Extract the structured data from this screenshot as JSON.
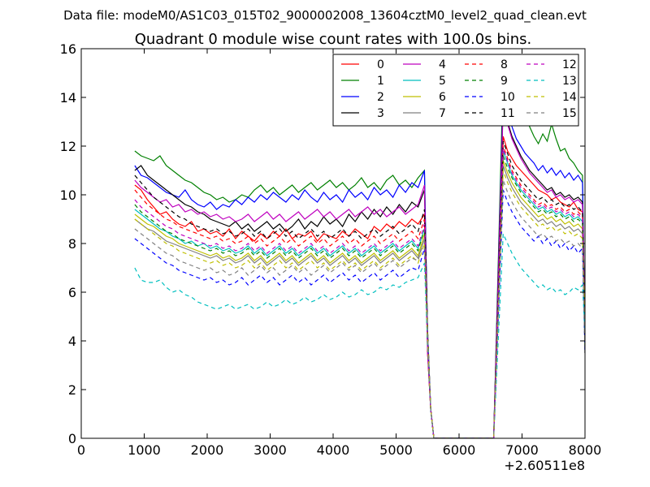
{
  "header": {
    "suptitle": "Data file: modeM0/AS1C03_015T02_9000002008_13604cztM0_level2_quad_clean.evt",
    "title": "Quadrant 0 module wise count rates with 100.0s bins."
  },
  "chart_data": {
    "type": "line",
    "xlim": [
      0,
      8000
    ],
    "ylim": [
      0,
      16
    ],
    "x_offset_label": "+2.60511e8",
    "xticks": [
      0,
      1000,
      2000,
      3000,
      4000,
      5000,
      6000,
      7000,
      8000
    ],
    "yticks": [
      0,
      2,
      4,
      6,
      8,
      10,
      12,
      14,
      16
    ],
    "grid": false,
    "legend": {
      "position": "upper-right",
      "columns": 4
    },
    "x_start": 850,
    "x_step": 100,
    "gap_range": [
      5600,
      6500
    ],
    "series": [
      {
        "name": "0",
        "color": "#ff0000",
        "style": "solid",
        "before": [
          10.4,
          10.2,
          9.8,
          9.5,
          9.2,
          9.3,
          9.0,
          8.8,
          8.7,
          8.9,
          8.5,
          8.6,
          8.4,
          8.5,
          8.3,
          8.6,
          8.2,
          8.5,
          8.3,
          8.1,
          8.4,
          8.2,
          8.5,
          8.3,
          8.6,
          8.2,
          8.4,
          8.3,
          8.5,
          8.1,
          8.4,
          8.3,
          8.2,
          8.5,
          8.3,
          8.6,
          8.4,
          8.2,
          8.7,
          8.5,
          8.8,
          8.6,
          8.9,
          8.7,
          9.0,
          8.8,
          9.2
        ],
        "after": [
          12.4,
          11.8,
          11.5,
          11.2,
          11.0,
          10.8,
          10.6,
          10.4,
          10.2,
          10.1,
          10.0,
          9.8,
          9.9,
          9.7,
          9.6,
          9.5,
          9.7,
          9.4,
          9.3
        ]
      },
      {
        "name": "1",
        "color": "#008000",
        "style": "solid",
        "before": [
          11.8,
          11.6,
          11.5,
          11.4,
          11.6,
          11.2,
          11.0,
          10.8,
          10.6,
          10.5,
          10.3,
          10.1,
          10.0,
          9.8,
          9.9,
          9.7,
          9.8,
          10.0,
          9.9,
          10.2,
          10.4,
          10.1,
          10.3,
          10.0,
          10.2,
          10.4,
          10.1,
          10.3,
          10.5,
          10.2,
          10.4,
          10.6,
          10.3,
          10.5,
          10.2,
          10.4,
          10.7,
          10.3,
          10.5,
          10.2,
          10.6,
          10.8,
          10.4,
          10.6,
          10.3,
          10.7,
          11.0
        ],
        "after": [
          15.0,
          14.5,
          13.5,
          13.0,
          13.8,
          13.2,
          12.8,
          12.4,
          12.1,
          12.5,
          12.2,
          12.9,
          12.3,
          11.8,
          11.9,
          11.5,
          11.3,
          11.0,
          10.8
        ]
      },
      {
        "name": "2",
        "color": "#0000ff",
        "style": "solid",
        "before": [
          11.2,
          10.8,
          10.7,
          10.5,
          10.3,
          10.1,
          10.0,
          9.9,
          10.2,
          9.8,
          9.6,
          9.5,
          9.7,
          9.4,
          9.6,
          9.5,
          9.8,
          9.6,
          9.9,
          9.7,
          10.0,
          9.8,
          10.1,
          9.9,
          9.7,
          10.0,
          9.8,
          10.2,
          9.9,
          9.7,
          10.1,
          9.8,
          10.0,
          9.7,
          10.2,
          9.9,
          10.1,
          9.8,
          10.3,
          10.0,
          10.2,
          9.9,
          10.4,
          10.1,
          10.5,
          10.3,
          11.0
        ],
        "after": [
          14.2,
          13.5,
          12.8,
          12.3,
          12.0,
          11.7,
          11.5,
          11.3,
          11.0,
          11.2,
          10.9,
          11.1,
          10.8,
          11.0,
          10.7,
          10.9,
          10.6,
          10.8,
          10.5
        ]
      },
      {
        "name": "3",
        "color": "#000000",
        "style": "solid",
        "before": [
          11.0,
          11.2,
          10.8,
          10.6,
          10.4,
          10.2,
          10.0,
          9.8,
          9.6,
          9.5,
          9.3,
          9.2,
          9.0,
          8.9,
          8.8,
          8.7,
          8.9,
          8.6,
          8.8,
          8.5,
          8.7,
          8.9,
          8.6,
          8.8,
          8.5,
          8.7,
          9.0,
          8.6,
          8.9,
          8.7,
          9.1,
          8.8,
          9.0,
          8.7,
          9.2,
          8.9,
          9.3,
          9.0,
          9.4,
          9.1,
          9.5,
          9.2,
          9.6,
          9.3,
          9.7,
          9.5,
          10.2
        ],
        "after": [
          13.8,
          13.0,
          12.4,
          12.0,
          11.6,
          11.3,
          11.0,
          10.8,
          10.6,
          10.4,
          10.2,
          10.3,
          10.0,
          10.1,
          9.9,
          10.0,
          9.8,
          9.9,
          9.7
        ]
      },
      {
        "name": "4",
        "color": "#bf00bf",
        "style": "solid",
        "before": [
          10.6,
          10.3,
          10.1,
          9.9,
          9.7,
          9.8,
          9.5,
          9.6,
          9.3,
          9.4,
          9.2,
          9.3,
          9.1,
          9.2,
          9.0,
          9.1,
          8.9,
          9.0,
          9.2,
          8.9,
          9.1,
          9.3,
          9.0,
          9.2,
          8.9,
          9.1,
          9.3,
          9.0,
          9.2,
          9.4,
          9.1,
          9.3,
          9.0,
          9.2,
          9.4,
          9.1,
          9.3,
          9.5,
          9.2,
          9.4,
          9.1,
          9.3,
          9.5,
          9.2,
          9.4,
          9.6,
          10.4
        ],
        "after": [
          13.6,
          12.9,
          12.3,
          11.9,
          11.5,
          11.2,
          10.9,
          10.7,
          10.5,
          10.3,
          10.1,
          10.2,
          9.9,
          10.0,
          9.8,
          9.9,
          9.7,
          9.8,
          9.6
        ]
      },
      {
        "name": "5",
        "color": "#00bfbf",
        "style": "solid",
        "before": [
          9.4,
          9.2,
          9.0,
          8.8,
          8.6,
          8.5,
          8.3,
          8.2,
          8.0,
          8.1,
          7.9,
          8.0,
          7.8,
          7.9,
          7.7,
          7.8,
          7.6,
          7.7,
          7.9,
          7.6,
          7.8,
          7.5,
          7.7,
          7.9,
          7.6,
          7.8,
          7.5,
          7.7,
          7.9,
          7.6,
          7.8,
          7.5,
          7.7,
          7.9,
          7.6,
          7.8,
          7.5,
          7.7,
          7.9,
          7.6,
          7.8,
          8.0,
          7.7,
          7.9,
          8.1,
          7.8,
          8.6
        ],
        "after": [
          11.8,
          11.3,
          10.8,
          10.5,
          10.2,
          10.0,
          9.8,
          9.6,
          9.4,
          9.5,
          9.3,
          9.4,
          9.2,
          9.3,
          9.1,
          9.2,
          9.0,
          9.1,
          8.9
        ]
      },
      {
        "name": "6",
        "color": "#bfbf00",
        "style": "solid",
        "before": [
          9.2,
          9.0,
          8.8,
          8.7,
          8.5,
          8.3,
          8.2,
          8.0,
          7.9,
          7.8,
          7.7,
          7.6,
          7.5,
          7.6,
          7.4,
          7.5,
          7.3,
          7.4,
          7.6,
          7.3,
          7.5,
          7.2,
          7.4,
          7.6,
          7.3,
          7.5,
          7.2,
          7.4,
          7.6,
          7.3,
          7.5,
          7.2,
          7.4,
          7.6,
          7.3,
          7.5,
          7.2,
          7.4,
          7.6,
          7.3,
          7.5,
          7.7,
          7.4,
          7.6,
          7.8,
          7.5,
          8.4
        ],
        "after": [
          11.4,
          10.9,
          10.5,
          10.2,
          9.9,
          9.7,
          9.5,
          9.3,
          9.1,
          9.2,
          9.0,
          9.1,
          8.9,
          9.0,
          8.8,
          8.9,
          8.7,
          8.8,
          8.6
        ]
      },
      {
        "name": "7",
        "color": "#808080",
        "style": "solid",
        "before": [
          9.0,
          8.8,
          8.6,
          8.5,
          8.3,
          8.1,
          8.0,
          7.9,
          7.8,
          7.7,
          7.6,
          7.5,
          7.4,
          7.5,
          7.3,
          7.4,
          7.2,
          7.3,
          7.5,
          7.2,
          7.4,
          7.1,
          7.3,
          7.5,
          7.2,
          7.4,
          7.1,
          7.3,
          7.5,
          7.2,
          7.4,
          7.1,
          7.3,
          7.5,
          7.2,
          7.4,
          7.1,
          7.3,
          7.5,
          7.2,
          7.4,
          7.6,
          7.3,
          7.5,
          7.7,
          7.4,
          8.2
        ],
        "after": [
          11.2,
          10.7,
          10.3,
          10.0,
          9.7,
          9.5,
          9.3,
          9.1,
          8.9,
          9.0,
          8.8,
          8.9,
          8.7,
          8.8,
          8.6,
          8.7,
          8.5,
          8.6,
          8.4
        ]
      },
      {
        "name": "8",
        "color": "#ff0000",
        "style": "dashed",
        "before": [
          10.2,
          9.9,
          9.6,
          9.4,
          9.2,
          9.0,
          8.9,
          8.7,
          8.6,
          8.5,
          8.4,
          8.3,
          8.2,
          8.3,
          8.1,
          8.2,
          8.0,
          8.1,
          8.3,
          8.0,
          8.2,
          7.9,
          8.1,
          8.3,
          8.0,
          8.2,
          7.9,
          8.1,
          8.3,
          8.0,
          8.2,
          7.9,
          8.1,
          8.3,
          8.0,
          8.2,
          7.9,
          8.1,
          8.3,
          8.0,
          8.2,
          8.4,
          8.1,
          8.3,
          8.5,
          8.2,
          9.0
        ],
        "after": [
          12.0,
          11.5,
          11.0,
          10.7,
          10.4,
          10.2,
          10.0,
          9.8,
          9.6,
          9.7,
          9.5,
          9.6,
          9.4,
          9.5,
          9.3,
          9.4,
          9.2,
          9.3,
          9.1
        ]
      },
      {
        "name": "9",
        "color": "#008000",
        "style": "dashed",
        "before": [
          9.6,
          9.3,
          9.1,
          8.9,
          8.7,
          8.5,
          8.4,
          8.2,
          8.1,
          8.0,
          7.9,
          7.8,
          7.7,
          7.8,
          7.6,
          7.7,
          7.5,
          7.6,
          7.8,
          7.5,
          7.7,
          7.4,
          7.6,
          7.8,
          7.5,
          7.7,
          7.4,
          7.6,
          7.8,
          7.5,
          7.7,
          7.4,
          7.6,
          7.8,
          7.5,
          7.7,
          7.4,
          7.6,
          7.8,
          7.5,
          7.7,
          7.9,
          7.6,
          7.8,
          8.0,
          7.7,
          8.6
        ],
        "after": [
          11.6,
          11.1,
          10.7,
          10.4,
          10.1,
          9.9,
          9.7,
          9.5,
          9.3,
          9.4,
          9.2,
          9.3,
          9.1,
          9.2,
          9.0,
          9.1,
          8.9,
          9.0,
          8.8
        ]
      },
      {
        "name": "10",
        "color": "#0000ff",
        "style": "dashed",
        "before": [
          8.2,
          8.0,
          7.8,
          7.6,
          7.4,
          7.2,
          7.1,
          6.9,
          6.8,
          6.7,
          6.6,
          6.5,
          6.6,
          6.4,
          6.5,
          6.3,
          6.4,
          6.6,
          6.3,
          6.5,
          6.7,
          6.4,
          6.6,
          6.3,
          6.5,
          6.7,
          6.4,
          6.6,
          6.3,
          6.5,
          6.7,
          6.4,
          6.6,
          6.8,
          6.5,
          6.7,
          6.4,
          6.6,
          6.8,
          6.5,
          6.7,
          6.9,
          6.6,
          6.8,
          7.0,
          6.9,
          7.8
        ],
        "after": [
          10.2,
          9.7,
          9.3,
          9.0,
          8.7,
          8.5,
          8.3,
          8.1,
          8.3,
          8.0,
          8.2,
          7.9,
          8.1,
          7.8,
          8.0,
          7.7,
          7.9,
          7.6,
          7.8
        ]
      },
      {
        "name": "11",
        "color": "#000000",
        "style": "dashed",
        "before": [
          10.8,
          10.5,
          10.2,
          9.9,
          9.7,
          9.5,
          9.3,
          9.1,
          9.0,
          8.8,
          8.7,
          8.6,
          8.5,
          8.6,
          8.4,
          8.5,
          8.3,
          8.4,
          8.6,
          8.3,
          8.5,
          8.2,
          8.4,
          8.6,
          8.3,
          8.5,
          8.2,
          8.4,
          8.6,
          8.3,
          8.5,
          8.2,
          8.4,
          8.6,
          8.3,
          8.5,
          8.2,
          8.4,
          8.6,
          8.3,
          8.5,
          8.7,
          8.4,
          8.6,
          8.8,
          8.5,
          9.4
        ],
        "after": [
          12.2,
          11.7,
          11.2,
          10.9,
          10.6,
          10.4,
          10.2,
          10.0,
          9.8,
          9.9,
          9.7,
          9.8,
          9.6,
          9.7,
          9.5,
          9.6,
          9.4,
          9.5,
          9.3
        ]
      },
      {
        "name": "12",
        "color": "#bf00bf",
        "style": "dashed",
        "before": [
          9.8,
          9.5,
          9.3,
          9.1,
          8.9,
          8.7,
          8.6,
          8.4,
          8.3,
          8.2,
          8.1,
          8.0,
          7.9,
          8.0,
          7.8,
          7.9,
          7.7,
          7.8,
          8.0,
          7.7,
          7.9,
          7.6,
          7.8,
          8.0,
          7.7,
          7.9,
          7.6,
          7.8,
          8.0,
          7.7,
          7.9,
          7.6,
          7.8,
          8.0,
          7.7,
          7.9,
          7.6,
          7.8,
          8.0,
          7.7,
          7.9,
          8.1,
          7.8,
          8.0,
          8.2,
          7.9,
          8.8
        ],
        "after": [
          11.9,
          11.4,
          10.9,
          10.6,
          10.3,
          10.1,
          9.9,
          9.7,
          9.5,
          9.6,
          9.4,
          9.5,
          9.3,
          9.4,
          9.2,
          9.3,
          9.1,
          9.2,
          9.0
        ]
      },
      {
        "name": "13",
        "color": "#00bfbf",
        "style": "dashed",
        "before": [
          7.0,
          6.5,
          6.4,
          6.4,
          6.5,
          6.2,
          6.0,
          6.1,
          5.9,
          5.8,
          5.6,
          5.5,
          5.4,
          5.3,
          5.4,
          5.5,
          5.3,
          5.4,
          5.5,
          5.3,
          5.4,
          5.6,
          5.4,
          5.5,
          5.7,
          5.5,
          5.6,
          5.8,
          5.6,
          5.7,
          5.9,
          5.7,
          5.8,
          6.0,
          5.8,
          5.9,
          6.1,
          5.9,
          6.0,
          6.2,
          6.1,
          6.3,
          6.2,
          6.4,
          6.5,
          6.6,
          7.2
        ],
        "after": [
          8.4,
          8.0,
          7.6,
          7.3,
          7.0,
          6.8,
          6.6,
          6.4,
          6.2,
          6.3,
          6.1,
          6.2,
          6.0,
          6.1,
          5.9,
          6.0,
          6.2,
          6.1,
          6.3
        ]
      },
      {
        "name": "14",
        "color": "#bfbf00",
        "style": "dashed",
        "before": [
          9.0,
          8.8,
          8.6,
          8.4,
          8.2,
          8.0,
          7.9,
          7.7,
          7.6,
          7.5,
          7.4,
          7.3,
          7.2,
          7.3,
          7.1,
          7.2,
          7.0,
          7.1,
          7.3,
          7.0,
          7.2,
          6.9,
          7.1,
          7.3,
          7.0,
          7.2,
          6.9,
          7.1,
          7.3,
          7.0,
          7.2,
          6.9,
          7.1,
          7.3,
          7.0,
          7.2,
          6.9,
          7.1,
          7.3,
          7.0,
          7.2,
          7.4,
          7.1,
          7.3,
          7.5,
          7.2,
          8.0
        ],
        "after": [
          11.0,
          10.5,
          10.1,
          9.8,
          9.5,
          9.3,
          9.1,
          8.9,
          8.7,
          8.8,
          8.6,
          8.7,
          8.5,
          8.6,
          8.4,
          8.5,
          8.3,
          8.4,
          8.2
        ]
      },
      {
        "name": "15",
        "color": "#808080",
        "style": "dashed",
        "before": [
          8.6,
          8.4,
          8.2,
          8.0,
          7.8,
          7.6,
          7.5,
          7.3,
          7.2,
          7.1,
          7.0,
          6.9,
          7.0,
          6.8,
          6.9,
          6.7,
          6.8,
          7.0,
          6.7,
          6.9,
          7.1,
          6.8,
          7.0,
          6.7,
          6.9,
          7.1,
          6.8,
          7.0,
          6.7,
          6.9,
          7.1,
          6.8,
          7.0,
          7.2,
          6.9,
          7.1,
          6.8,
          7.0,
          7.2,
          6.9,
          7.1,
          7.3,
          7.0,
          7.2,
          7.4,
          7.3,
          8.2
        ],
        "after": [
          10.6,
          10.1,
          9.7,
          9.4,
          9.1,
          8.9,
          8.7,
          8.5,
          8.3,
          8.4,
          8.2,
          8.3,
          8.1,
          8.2,
          8.0,
          8.1,
          7.9,
          8.0,
          7.8
        ]
      }
    ]
  }
}
